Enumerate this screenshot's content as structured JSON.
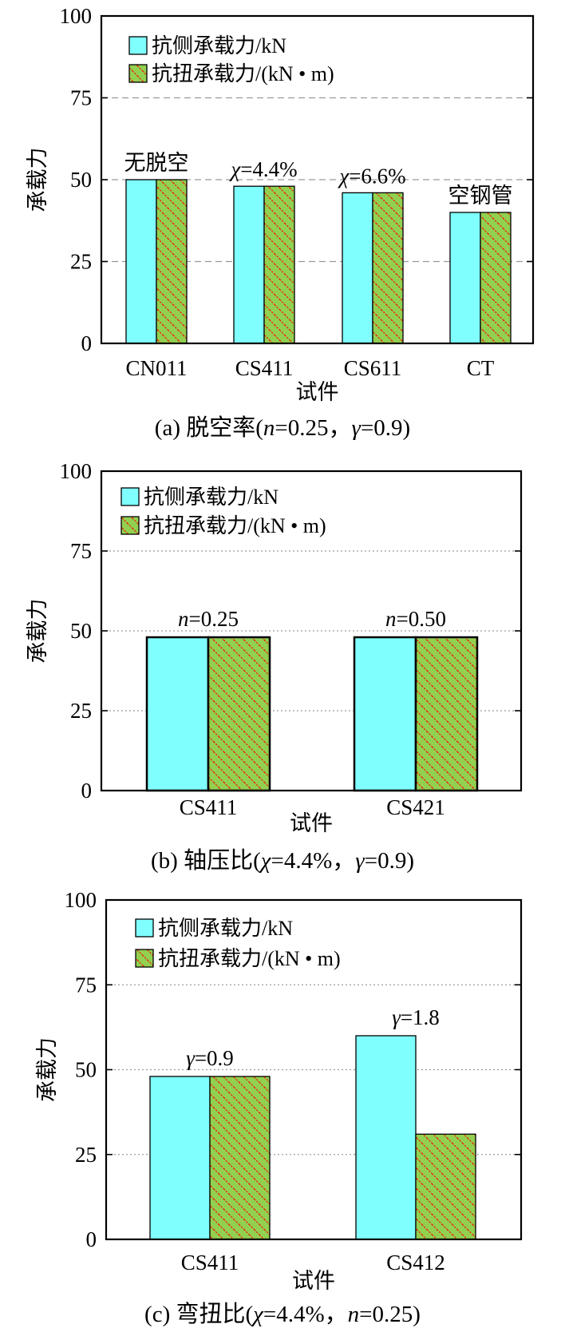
{
  "legend": {
    "series_a": "抗侧承载力/kN",
    "series_b": "抗扭承载力/(kN • m)"
  },
  "colors": {
    "series_a": "#80ffff",
    "series_b_fill": "#92d050",
    "series_b_hatch": "#ff0000"
  },
  "chart_data": [
    {
      "type": "bar",
      "caption": "(a)  脱空率(n=0.25，γ=0.9)",
      "xlabel": "试件",
      "ylabel": "承载力",
      "ylim": [
        0,
        100
      ],
      "yticks": [
        "0",
        "25",
        "50",
        "75",
        "100"
      ],
      "grid": "dashed",
      "legend_position": "top-left",
      "categories": [
        "CN011",
        "CS411",
        "CS611",
        "CT"
      ],
      "annotations": [
        "无脱空",
        "χ=4.4%",
        "χ=6.6%",
        "空钢管"
      ],
      "series": [
        {
          "name": "抗侧承载力/kN",
          "values": [
            50,
            48,
            46,
            40
          ]
        },
        {
          "name": "抗扭承载力/(kN • m)",
          "values": [
            50,
            48,
            46,
            40
          ]
        }
      ]
    },
    {
      "type": "bar",
      "caption": "(b)  轴压比(χ=4.4%，γ=0.9)",
      "xlabel": "试件",
      "ylabel": "承载力",
      "ylim": [
        0,
        100
      ],
      "yticks": [
        "0",
        "25",
        "50",
        "75",
        "100"
      ],
      "grid": "dotted",
      "legend_position": "top-left",
      "categories": [
        "CS411",
        "CS421"
      ],
      "annotations": [
        "n=0.25",
        "n=0.50"
      ],
      "series": [
        {
          "name": "抗侧承载力/kN",
          "values": [
            48,
            48
          ]
        },
        {
          "name": "抗扭承载力/(kN • m)",
          "values": [
            48,
            48
          ]
        }
      ]
    },
    {
      "type": "bar",
      "caption": "(c)  弯扭比(χ=4.4%，n=0.25)",
      "xlabel": "试件",
      "ylabel": "承载力",
      "ylim": [
        0,
        100
      ],
      "yticks": [
        "0",
        "25",
        "50",
        "75",
        "100"
      ],
      "grid": "dotted",
      "legend_position": "top-left",
      "categories": [
        "CS411",
        "CS412"
      ],
      "annotations": [
        "γ=0.9",
        "γ=1.8"
      ],
      "series": [
        {
          "name": "抗侧承载力/kN",
          "values": [
            48,
            60
          ]
        },
        {
          "name": "抗扭承载力/(kN • m)",
          "values": [
            48,
            31
          ]
        }
      ]
    }
  ]
}
